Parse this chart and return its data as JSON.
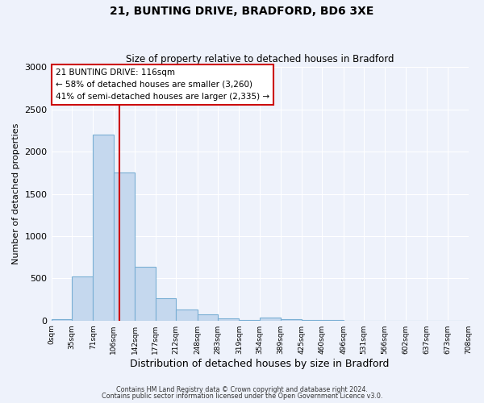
{
  "title": "21, BUNTING DRIVE, BRADFORD, BD6 3XE",
  "subtitle": "Size of property relative to detached houses in Bradford",
  "xlabel": "Distribution of detached houses by size in Bradford",
  "ylabel": "Number of detached properties",
  "bar_color": "#c5d8ee",
  "bar_edge_color": "#7aafd4",
  "background_color": "#eef2fb",
  "grid_color": "white",
  "bin_edges": [
    0,
    35,
    71,
    106,
    142,
    177,
    212,
    248,
    283,
    319,
    354,
    389,
    425,
    460,
    496,
    531,
    566,
    602,
    637,
    673,
    708
  ],
  "bin_labels": [
    "0sqm",
    "35sqm",
    "71sqm",
    "106sqm",
    "142sqm",
    "177sqm",
    "212sqm",
    "248sqm",
    "283sqm",
    "319sqm",
    "354sqm",
    "389sqm",
    "425sqm",
    "460sqm",
    "496sqm",
    "531sqm",
    "566sqm",
    "602sqm",
    "637sqm",
    "673sqm",
    "708sqm"
  ],
  "bar_heights": [
    20,
    520,
    2200,
    1750,
    640,
    260,
    130,
    70,
    25,
    10,
    35,
    15,
    5,
    3,
    0,
    0,
    0,
    0,
    0,
    0
  ],
  "vline_x": 116,
  "vline_color": "#cc0000",
  "annotation_title": "21 BUNTING DRIVE: 116sqm",
  "annotation_line1": "← 58% of detached houses are smaller (3,260)",
  "annotation_line2": "41% of semi-detached houses are larger (2,335) →",
  "annotation_box_color": "white",
  "annotation_box_edge": "#cc0000",
  "ylim": [
    0,
    3000
  ],
  "yticks": [
    0,
    500,
    1000,
    1500,
    2000,
    2500,
    3000
  ],
  "footer1": "Contains HM Land Registry data © Crown copyright and database right 2024.",
  "footer2": "Contains public sector information licensed under the Open Government Licence v3.0."
}
